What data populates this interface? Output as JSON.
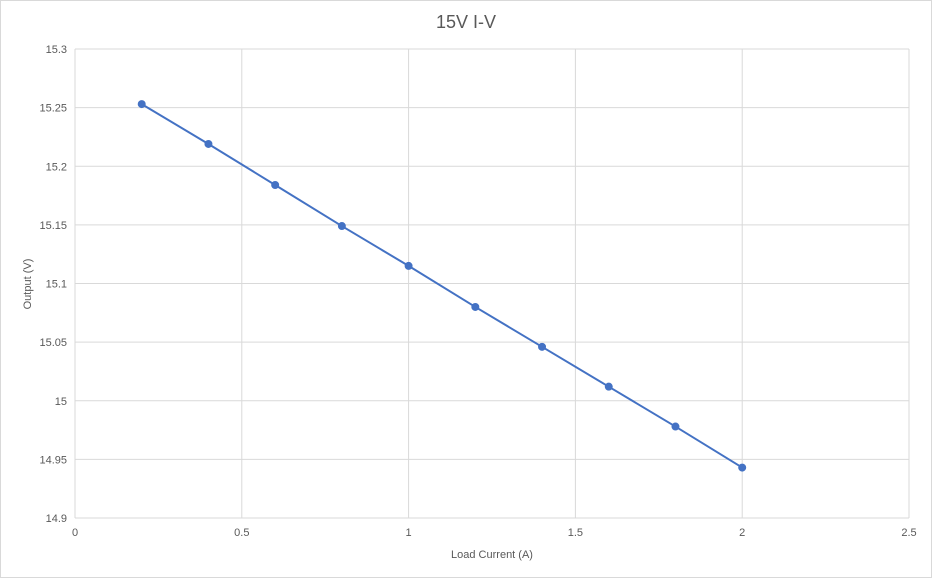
{
  "chart_data": {
    "type": "scatter",
    "title": "15V I-V",
    "xlabel": "Load Current (A)",
    "ylabel": "Output (V)",
    "xlim": [
      0,
      2.5
    ],
    "ylim": [
      14.9,
      15.3
    ],
    "x_ticks": [
      "0",
      "0.5",
      "1",
      "1.5",
      "2",
      "2.5"
    ],
    "y_ticks": [
      "14.9",
      "14.95",
      "15",
      "15.05",
      "15.1",
      "15.15",
      "15.2",
      "15.25",
      "15.3"
    ],
    "grid": true,
    "legend": "none",
    "series": [
      {
        "color": "#4472c4",
        "points": [
          {
            "x": 0.2,
            "y": 15.253
          },
          {
            "x": 0.4,
            "y": 15.219
          },
          {
            "x": 0.6,
            "y": 15.184
          },
          {
            "x": 0.8,
            "y": 15.149
          },
          {
            "x": 1.0,
            "y": 15.115
          },
          {
            "x": 1.2,
            "y": 15.08
          },
          {
            "x": 1.4,
            "y": 15.046
          },
          {
            "x": 1.6,
            "y": 15.012
          },
          {
            "x": 1.8,
            "y": 14.978
          },
          {
            "x": 2.0,
            "y": 14.943
          }
        ]
      }
    ]
  }
}
